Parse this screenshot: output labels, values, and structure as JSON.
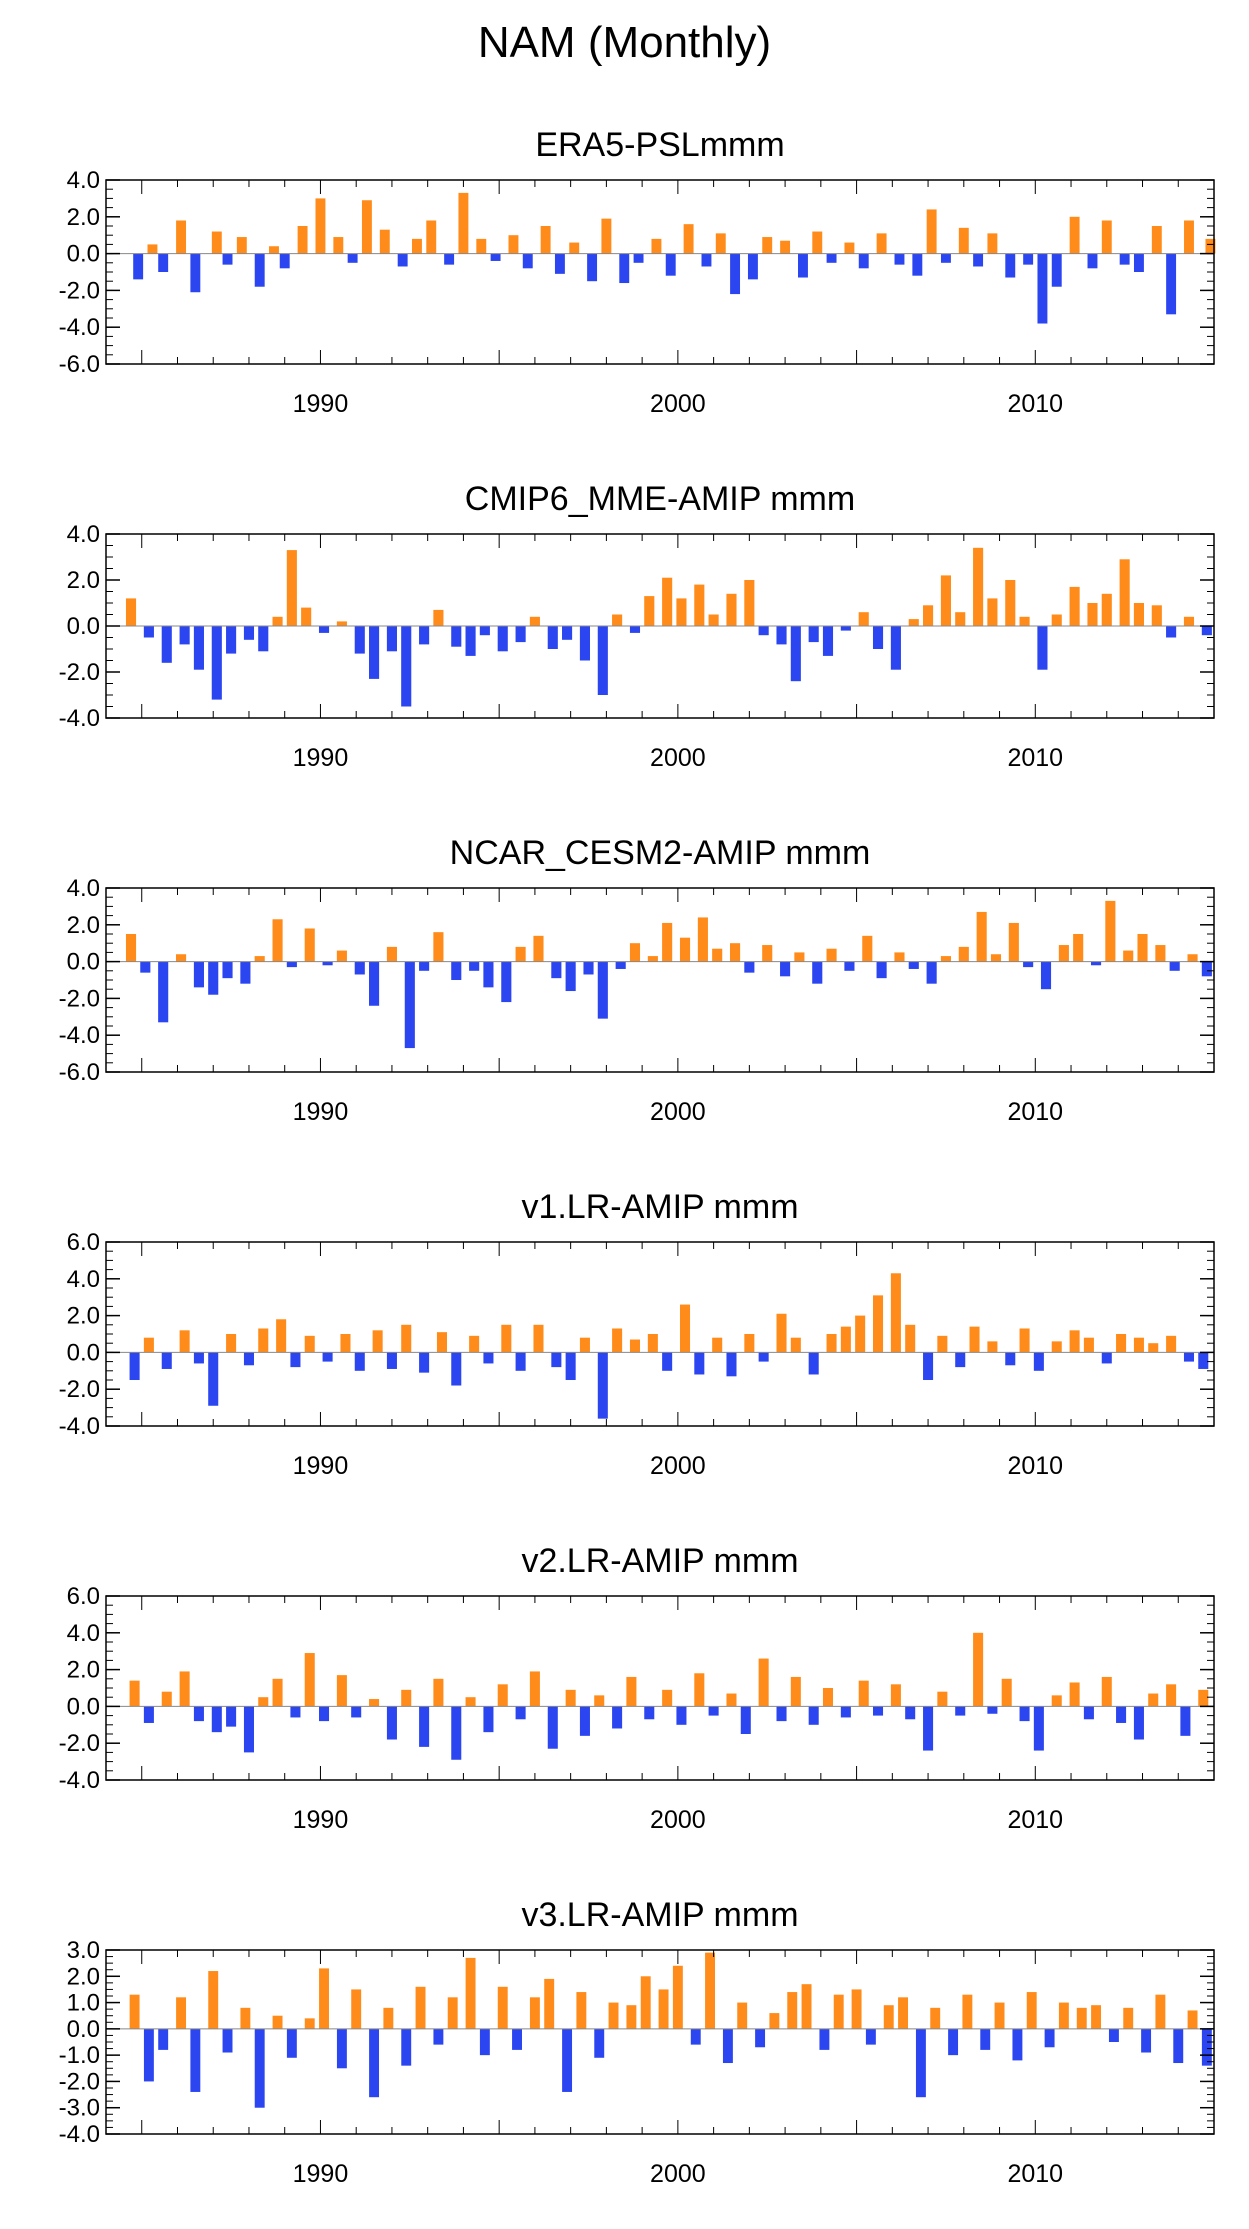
{
  "title": "NAM (Monthly)",
  "colors": {
    "positive": "#ff8c1a",
    "negative": "#2b45f0",
    "axis": "#000000"
  },
  "chart_data": [
    {
      "type": "area",
      "title": "ERA5-PSLmmm",
      "xlabel": "",
      "ylabel": "",
      "xlim": [
        1984.0,
        2015.0
      ],
      "ylim": [
        -6.0,
        4.0
      ],
      "yticks": [
        4.0,
        2.0,
        0.0,
        -2.0,
        -4.0,
        -6.0
      ],
      "ytick_labels": [
        "4.0",
        "2.0",
        "0.0",
        "-2.0",
        "-4.0",
        "-6.0"
      ],
      "xticks": [
        1990,
        2000,
        2010
      ],
      "xtick_labels": [
        "1990",
        "2000",
        "2010"
      ],
      "x": [
        1984.9,
        1985.3,
        1985.6,
        1986.1,
        1986.5,
        1987.1,
        1987.4,
        1987.8,
        1988.3,
        1988.7,
        1989.0,
        1989.5,
        1990.0,
        1990.5,
        1990.9,
        1991.3,
        1991.8,
        1992.3,
        1992.7,
        1993.1,
        1993.6,
        1994.0,
        1994.5,
        1994.9,
        1995.4,
        1995.8,
        1996.3,
        1996.7,
        1997.1,
        1997.6,
        1998.0,
        1998.5,
        1998.9,
        1999.4,
        1999.8,
        2000.3,
        2000.8,
        2001.2,
        2001.6,
        2002.1,
        2002.5,
        2003.0,
        2003.5,
        2003.9,
        2004.3,
        2004.8,
        2005.2,
        2005.7,
        2006.2,
        2006.7,
        2007.1,
        2007.5,
        2008.0,
        2008.4,
        2008.8,
        2009.3,
        2009.8,
        2010.2,
        2010.6,
        2011.1,
        2011.6,
        2012.0,
        2012.5,
        2012.9,
        2013.4,
        2013.8,
        2014.3,
        2014.9
      ],
      "values": [
        -1.4,
        0.5,
        -1.0,
        1.8,
        -2.1,
        1.2,
        -0.6,
        0.9,
        -1.8,
        0.4,
        -0.8,
        1.5,
        3.0,
        0.9,
        -0.5,
        2.9,
        1.3,
        -0.7,
        0.8,
        1.8,
        -0.6,
        3.3,
        0.8,
        -0.4,
        1.0,
        -0.8,
        1.5,
        -1.1,
        0.6,
        -1.5,
        1.9,
        -1.6,
        -0.5,
        0.8,
        -1.2,
        1.6,
        -0.7,
        1.1,
        -2.2,
        -1.4,
        0.9,
        0.7,
        -1.3,
        1.2,
        -0.5,
        0.6,
        -0.8,
        1.1,
        -0.6,
        -1.2,
        2.4,
        -0.5,
        1.4,
        -0.7,
        1.1,
        -1.3,
        -0.6,
        -3.8,
        -1.8,
        2.0,
        -0.8,
        1.8,
        -0.6,
        -1.0,
        1.5,
        -3.3,
        1.8,
        0.8
      ]
    },
    {
      "type": "area",
      "title": "CMIP6_MME-AMIP  mmm",
      "xlabel": "",
      "ylabel": "",
      "xlim": [
        1984.0,
        2015.0
      ],
      "ylim": [
        -4.0,
        4.0
      ],
      "yticks": [
        4.0,
        2.0,
        0.0,
        -2.0,
        -4.0
      ],
      "ytick_labels": [
        "4.0",
        "2.0",
        "0.0",
        "-2.0",
        "-4.0"
      ],
      "xticks": [
        1990,
        2000,
        2010
      ],
      "xtick_labels": [
        "1990",
        "2000",
        "2010"
      ],
      "x": [
        1984.7,
        1985.2,
        1985.7,
        1986.2,
        1986.6,
        1987.1,
        1987.5,
        1988.0,
        1988.4,
        1988.8,
        1989.2,
        1989.6,
        1990.1,
        1990.6,
        1991.1,
        1991.5,
        1992.0,
        1992.4,
        1992.9,
        1993.3,
        1993.8,
        1994.2,
        1994.6,
        1995.1,
        1995.6,
        1996.0,
        1996.5,
        1996.9,
        1997.4,
        1997.9,
        1998.3,
        1998.8,
        1999.2,
        1999.7,
        2000.1,
        2000.6,
        2001.0,
        2001.5,
        2002.0,
        2002.4,
        2002.9,
        2003.3,
        2003.8,
        2004.2,
        2004.7,
        2005.2,
        2005.6,
        2006.1,
        2006.6,
        2007.0,
        2007.5,
        2007.9,
        2008.4,
        2008.8,
        2009.3,
        2009.7,
        2010.2,
        2010.6,
        2011.1,
        2011.6,
        2012.0,
        2012.5,
        2012.9,
        2013.4,
        2013.8,
        2014.3,
        2014.8
      ],
      "values": [
        1.2,
        -0.5,
        -1.6,
        -0.8,
        -1.9,
        -3.2,
        -1.2,
        -0.6,
        -1.1,
        0.4,
        3.3,
        0.8,
        -0.3,
        0.2,
        -1.2,
        -2.3,
        -1.1,
        -3.5,
        -0.8,
        0.7,
        -0.9,
        -1.3,
        -0.4,
        -1.1,
        -0.7,
        0.4,
        -1.0,
        -0.6,
        -1.5,
        -3.0,
        0.5,
        -0.3,
        1.3,
        2.1,
        1.2,
        1.8,
        0.5,
        1.4,
        2.0,
        -0.4,
        -0.8,
        -2.4,
        -0.7,
        -1.3,
        -0.2,
        0.6,
        -1.0,
        -1.9,
        0.3,
        0.9,
        2.2,
        0.6,
        3.4,
        1.2,
        2.0,
        0.4,
        -1.9,
        0.5,
        1.7,
        1.0,
        1.4,
        2.9,
        1.0,
        0.9,
        -0.5,
        0.4,
        -0.4
      ]
    },
    {
      "type": "area",
      "title": "NCAR_CESM2-AMIP  mmm",
      "xlabel": "",
      "ylabel": "",
      "xlim": [
        1984.0,
        2015.0
      ],
      "ylim": [
        -6.0,
        4.0
      ],
      "yticks": [
        4.0,
        2.0,
        0.0,
        -2.0,
        -4.0,
        -6.0
      ],
      "ytick_labels": [
        "4.0",
        "2.0",
        "0.0",
        "-2.0",
        "-4.0",
        "-6.0"
      ],
      "xticks": [
        1990,
        2000,
        2010
      ],
      "xtick_labels": [
        "1990",
        "2000",
        "2010"
      ],
      "x": [
        1984.7,
        1985.1,
        1985.6,
        1986.1,
        1986.6,
        1987.0,
        1987.4,
        1987.9,
        1988.3,
        1988.8,
        1989.2,
        1989.7,
        1990.2,
        1990.6,
        1991.1,
        1991.5,
        1992.0,
        1992.5,
        1992.9,
        1993.3,
        1993.8,
        1994.3,
        1994.7,
        1995.2,
        1995.6,
        1996.1,
        1996.6,
        1997.0,
        1997.5,
        1997.9,
        1998.4,
        1998.8,
        1999.3,
        1999.7,
        2000.2,
        2000.7,
        2001.1,
        2001.6,
        2002.0,
        2002.5,
        2003.0,
        2003.4,
        2003.9,
        2004.3,
        2004.8,
        2005.3,
        2005.7,
        2006.2,
        2006.6,
        2007.1,
        2007.5,
        2008.0,
        2008.5,
        2008.9,
        2009.4,
        2009.8,
        2010.3,
        2010.8,
        2011.2,
        2011.7,
        2012.1,
        2012.6,
        2013.0,
        2013.5,
        2013.9,
        2014.4,
        2014.8
      ],
      "values": [
        1.5,
        -0.6,
        -3.3,
        0.4,
        -1.4,
        -1.8,
        -0.9,
        -1.2,
        0.3,
        2.3,
        -0.3,
        1.8,
        -0.2,
        0.6,
        -0.7,
        -2.4,
        0.8,
        -4.7,
        -0.5,
        1.6,
        -1.0,
        -0.5,
        -1.4,
        -2.2,
        0.8,
        1.4,
        -0.9,
        -1.6,
        -0.7,
        -3.1,
        -0.4,
        1.0,
        0.3,
        2.1,
        1.3,
        2.4,
        0.7,
        1.0,
        -0.6,
        0.9,
        -0.8,
        0.5,
        -1.2,
        0.7,
        -0.5,
        1.4,
        -0.9,
        0.5,
        -0.4,
        -1.2,
        0.3,
        0.8,
        2.7,
        0.4,
        2.1,
        -0.3,
        -1.5,
        0.9,
        1.5,
        -0.2,
        3.3,
        0.6,
        1.5,
        0.9,
        -0.5,
        0.4,
        -0.8
      ]
    },
    {
      "type": "area",
      "title": "v1.LR-AMIP  mmm",
      "xlabel": "",
      "ylabel": "",
      "xlim": [
        1984.0,
        2015.0
      ],
      "ylim": [
        -4.0,
        6.0
      ],
      "yticks": [
        6.0,
        4.0,
        2.0,
        0.0,
        -2.0,
        -4.0
      ],
      "ytick_labels": [
        "6.0",
        "4.0",
        "2.0",
        "0.0",
        "-2.0",
        "-4.0"
      ],
      "xticks": [
        1990,
        2000,
        2010
      ],
      "xtick_labels": [
        "1990",
        "2000",
        "2010"
      ],
      "x": [
        1984.8,
        1985.2,
        1985.7,
        1986.2,
        1986.6,
        1987.0,
        1987.5,
        1988.0,
        1988.4,
        1988.9,
        1989.3,
        1989.7,
        1990.2,
        1990.7,
        1991.1,
        1991.6,
        1992.0,
        1992.4,
        1992.9,
        1993.4,
        1993.8,
        1994.3,
        1994.7,
        1995.2,
        1995.6,
        1996.1,
        1996.6,
        1997.0,
        1997.4,
        1997.9,
        1998.3,
        1998.8,
        1999.3,
        1999.7,
        2000.2,
        2000.6,
        2001.1,
        2001.5,
        2002.0,
        2002.4,
        2002.9,
        2003.3,
        2003.8,
        2004.3,
        2004.7,
        2005.1,
        2005.6,
        2006.1,
        2006.5,
        2007.0,
        2007.4,
        2007.9,
        2008.3,
        2008.8,
        2009.3,
        2009.7,
        2010.1,
        2010.6,
        2011.1,
        2011.5,
        2012.0,
        2012.4,
        2012.9,
        2013.3,
        2013.8,
        2014.3,
        2014.7
      ],
      "values": [
        -1.5,
        0.8,
        -0.9,
        1.2,
        -0.6,
        -2.9,
        1.0,
        -0.7,
        1.3,
        1.8,
        -0.8,
        0.9,
        -0.5,
        1.0,
        -1.0,
        1.2,
        -0.9,
        1.5,
        -1.1,
        1.1,
        -1.8,
        0.9,
        -0.6,
        1.5,
        -1.0,
        1.5,
        -0.8,
        -1.5,
        0.8,
        -3.6,
        1.3,
        0.7,
        1.0,
        -1.0,
        2.6,
        -1.2,
        0.8,
        -1.3,
        1.0,
        -0.5,
        2.1,
        0.8,
        -1.2,
        1.0,
        1.4,
        2.0,
        3.1,
        4.3,
        1.5,
        -1.5,
        0.9,
        -0.8,
        1.4,
        0.6,
        -0.7,
        1.3,
        -1.0,
        0.6,
        1.2,
        0.8,
        -0.6,
        1.0,
        0.8,
        0.5,
        0.9,
        -0.5,
        -0.9
      ]
    },
    {
      "type": "area",
      "title": "v2.LR-AMIP  mmm",
      "xlabel": "",
      "ylabel": "",
      "xlim": [
        1984.0,
        2015.0
      ],
      "ylim": [
        -4.0,
        6.0
      ],
      "yticks": [
        6.0,
        4.0,
        2.0,
        0.0,
        -2.0,
        -4.0
      ],
      "ytick_labels": [
        "6.0",
        "4.0",
        "2.0",
        "0.0",
        "-2.0",
        "-4.0"
      ],
      "xticks": [
        1990,
        2000,
        2010
      ],
      "xtick_labels": [
        "1990",
        "2000",
        "2010"
      ],
      "x": [
        1984.8,
        1985.2,
        1985.7,
        1986.2,
        1986.6,
        1987.1,
        1987.5,
        1988.0,
        1988.4,
        1988.8,
        1989.3,
        1989.7,
        1990.1,
        1990.6,
        1991.0,
        1991.5,
        1992.0,
        1992.4,
        1992.9,
        1993.3,
        1993.8,
        1994.2,
        1994.7,
        1995.1,
        1995.6,
        1996.0,
        1996.5,
        1997.0,
        1997.4,
        1997.8,
        1998.3,
        1998.7,
        1999.2,
        1999.7,
        2000.1,
        2000.6,
        2001.0,
        2001.5,
        2001.9,
        2002.4,
        2002.9,
        2003.3,
        2003.8,
        2004.2,
        2004.7,
        2005.2,
        2005.6,
        2006.1,
        2006.5,
        2007.0,
        2007.4,
        2007.9,
        2008.4,
        2008.8,
        2009.2,
        2009.7,
        2010.1,
        2010.6,
        2011.1,
        2011.5,
        2012.0,
        2012.4,
        2012.9,
        2013.3,
        2013.8,
        2014.2,
        2014.7
      ],
      "values": [
        1.4,
        -0.9,
        0.8,
        1.9,
        -0.8,
        -1.4,
        -1.1,
        -2.5,
        0.5,
        1.5,
        -0.6,
        2.9,
        -0.8,
        1.7,
        -0.6,
        0.4,
        -1.8,
        0.9,
        -2.2,
        1.5,
        -2.9,
        0.5,
        -1.4,
        1.2,
        -0.7,
        1.9,
        -2.3,
        0.9,
        -1.6,
        0.6,
        -1.2,
        1.6,
        -0.7,
        0.9,
        -1.0,
        1.8,
        -0.5,
        0.7,
        -1.5,
        2.6,
        -0.8,
        1.6,
        -1.0,
        1.0,
        -0.6,
        1.4,
        -0.5,
        1.2,
        -0.7,
        -2.4,
        0.8,
        -0.5,
        4.0,
        -0.4,
        1.5,
        -0.8,
        -2.4,
        0.6,
        1.3,
        -0.7,
        1.6,
        -0.9,
        -1.8,
        0.7,
        1.2,
        -1.6,
        0.9
      ]
    },
    {
      "type": "area",
      "title": "v3.LR-AMIP  mmm",
      "xlabel": "",
      "ylabel": "",
      "xlim": [
        1984.0,
        2015.0
      ],
      "ylim": [
        -4.0,
        3.0
      ],
      "yticks": [
        3.0,
        2.0,
        1.0,
        0.0,
        -1.0,
        -2.0,
        -3.0,
        -4.0
      ],
      "ytick_labels": [
        "3.0",
        "2.0",
        "1.0",
        "0.0",
        "-1.0",
        "-2.0",
        "-3.0",
        "-4.0"
      ],
      "xticks": [
        1990,
        2000,
        2010
      ],
      "xtick_labels": [
        "1990",
        "2000",
        "2010"
      ],
      "x": [
        1984.8,
        1985.2,
        1985.6,
        1986.1,
        1986.5,
        1987.0,
        1987.4,
        1987.9,
        1988.3,
        1988.8,
        1989.2,
        1989.7,
        1990.1,
        1990.6,
        1991.0,
        1991.5,
        1991.9,
        1992.4,
        1992.8,
        1993.3,
        1993.7,
        1994.2,
        1994.6,
        1995.1,
        1995.5,
        1996.0,
        1996.4,
        1996.9,
        1997.3,
        1997.8,
        1998.2,
        1998.7,
        1999.1,
        1999.6,
        2000.0,
        2000.5,
        2000.9,
        2001.4,
        2001.8,
        2002.3,
        2002.7,
        2003.2,
        2003.6,
        2004.1,
        2004.5,
        2005.0,
        2005.4,
        2005.9,
        2006.3,
        2006.8,
        2007.2,
        2007.7,
        2008.1,
        2008.6,
        2009.0,
        2009.5,
        2009.9,
        2010.4,
        2010.8,
        2011.3,
        2011.7,
        2012.2,
        2012.6,
        2013.1,
        2013.5,
        2014.0,
        2014.4,
        2014.8
      ],
      "values": [
        1.3,
        -2.0,
        -0.8,
        1.2,
        -2.4,
        2.2,
        -0.9,
        0.8,
        -3.0,
        0.5,
        -1.1,
        0.4,
        2.3,
        -1.5,
        1.5,
        -2.6,
        0.8,
        -1.4,
        1.6,
        -0.6,
        1.2,
        2.7,
        -1.0,
        1.6,
        -0.8,
        1.2,
        1.9,
        -2.4,
        1.4,
        -1.1,
        1.0,
        0.9,
        2.0,
        1.5,
        2.4,
        -0.6,
        2.9,
        -1.3,
        1.0,
        -0.7,
        0.6,
        1.4,
        1.7,
        -0.8,
        1.3,
        1.5,
        -0.6,
        0.9,
        1.2,
        -2.6,
        0.8,
        -1.0,
        1.3,
        -0.8,
        1.0,
        -1.2,
        1.4,
        -0.7,
        1.0,
        0.8,
        0.9,
        -0.5,
        0.8,
        -0.9,
        1.3,
        -1.3,
        0.7,
        -1.4
      ]
    }
  ]
}
